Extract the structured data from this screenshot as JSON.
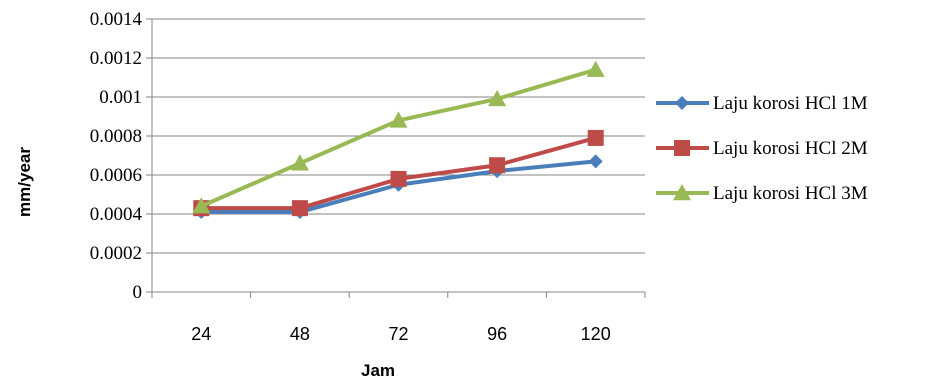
{
  "chart_data": {
    "type": "line",
    "categories": [
      "24",
      "48",
      "72",
      "96",
      "120"
    ],
    "series": [
      {
        "name": "Laju korosi HCl 1M",
        "values": [
          0.00041,
          0.00041,
          0.00055,
          0.00062,
          0.00067
        ],
        "color": "#4a7ebb",
        "marker": "diamond"
      },
      {
        "name": "Laju korosi HCl 2M",
        "values": [
          0.00043,
          0.00043,
          0.00058,
          0.00065,
          0.00079
        ],
        "color": "#be4b48",
        "marker": "square"
      },
      {
        "name": "Laju korosi HCl 3M",
        "values": [
          0.00044,
          0.00066,
          0.00088,
          0.00099,
          0.00114
        ],
        "color": "#98b954",
        "marker": "triangle"
      }
    ],
    "yticks": [
      "0",
      "0.0002",
      "0.0004",
      "0.0006",
      "0.0008",
      "0.001",
      "0.0012",
      "0.0014"
    ],
    "ylim": [
      0,
      0.0014
    ],
    "xlabel": "Jam",
    "ylabel": "mm/year",
    "grid": true,
    "legend_position": "right"
  }
}
